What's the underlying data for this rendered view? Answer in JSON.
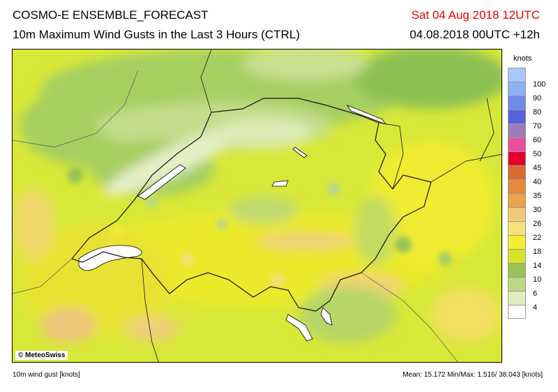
{
  "header": {
    "title_line1": "COSMO-E ENSEMBLE_FORECAST",
    "title_line2": "10m Maximum Wind Gusts in the Last 3 Hours (CTRL)",
    "valid_time": "Sat 04 Aug 2018 12UTC",
    "run_time": "04.08.2018 00UTC +12h"
  },
  "map": {
    "copyright": "© MeteoSwiss",
    "background_color": "#d8e838"
  },
  "legend": {
    "unit": "knots",
    "levels": [
      {
        "label": "100",
        "color": "#a9c8ff"
      },
      {
        "label": "90",
        "color": "#8cb2f5"
      },
      {
        "label": "80",
        "color": "#6c8ce8"
      },
      {
        "label": "70",
        "color": "#5662dc"
      },
      {
        "label": "60",
        "color": "#9d7bb8"
      },
      {
        "label": "50",
        "color": "#e8509c"
      },
      {
        "label": "45",
        "color": "#e4002c"
      },
      {
        "label": "40",
        "color": "#d86a2c"
      },
      {
        "label": "35",
        "color": "#e48a3a"
      },
      {
        "label": "30",
        "color": "#eba24c"
      },
      {
        "label": "26",
        "color": "#f1c97a"
      },
      {
        "label": "22",
        "color": "#f6e07a"
      },
      {
        "label": "18",
        "color": "#f3ee30"
      },
      {
        "label": "14",
        "color": "#d6e428"
      },
      {
        "label": "10",
        "color": "#98c454"
      },
      {
        "label": "6",
        "color": "#bcd884"
      },
      {
        "label": "4",
        "color": "#e1edbc"
      },
      {
        "label": "",
        "color": "#ffffff"
      }
    ]
  },
  "footer": {
    "variable": "10m wind gust [knots]",
    "stats": "Mean:  15.172 Min/Max:   1.516/ 38.043 [knots]"
  }
}
